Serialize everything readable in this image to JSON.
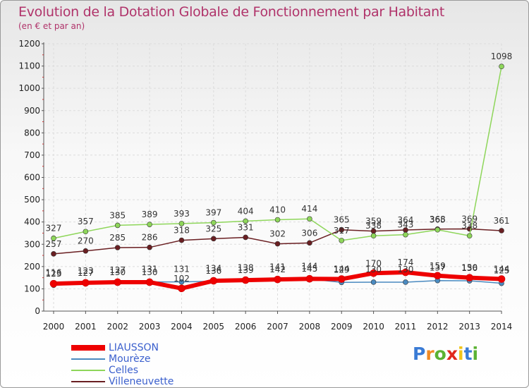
{
  "title": "Evolution de la Dotation Globale de Fonctionnement par Habitant",
  "subtitle": "(en € et par an)",
  "logo": {
    "text": "Proxiti",
    "colors": [
      "#3a7bd5",
      "#f08a24",
      "#5bb233",
      "#e0281d",
      "#f0c419",
      "#3a7bd5",
      "#5bb233"
    ]
  },
  "chart_data": {
    "type": "line",
    "title": "Evolution de la Dotation Globale de Fonctionnement par Habitant",
    "subtitle": "(en € et par an)",
    "xlabel": "",
    "ylabel": "",
    "ylim": [
      0,
      1200
    ],
    "yticks": [
      0,
      100,
      200,
      300,
      400,
      500,
      600,
      700,
      800,
      900,
      1000,
      1100,
      1200
    ],
    "x": [
      "2000",
      "2001",
      "2002",
      "2003",
      "2004",
      "2005",
      "2006",
      "2007",
      "2008",
      "2009",
      "2010",
      "2011",
      "2012",
      "2013",
      "2014"
    ],
    "grid": true,
    "legend_position": "bottom-left",
    "series": [
      {
        "name": "LIAUSSON",
        "color": "#ee0000",
        "values": [
          123,
          127,
          130,
          130,
          102,
          136,
          139,
          142,
          145,
          144,
          170,
          174,
          159,
          150,
          144
        ]
      },
      {
        "name": "Mourèze",
        "color": "#4a8ac0",
        "values": [
          116,
          123,
          127,
          131,
          131,
          134,
          138,
          141,
          144,
          129,
          130,
          130,
          137,
          136,
          125
        ]
      },
      {
        "name": "Celles",
        "color": "#8ed65a",
        "values": [
          327,
          357,
          385,
          389,
          393,
          397,
          404,
          410,
          414,
          317,
          338,
          343,
          365,
          338,
          1098
        ]
      },
      {
        "name": "Villeneuvette",
        "color": "#6a1f22",
        "values": [
          257,
          270,
          285,
          286,
          318,
          325,
          331,
          302,
          306,
          365,
          359,
          364,
          368,
          369,
          361
        ]
      }
    ]
  }
}
